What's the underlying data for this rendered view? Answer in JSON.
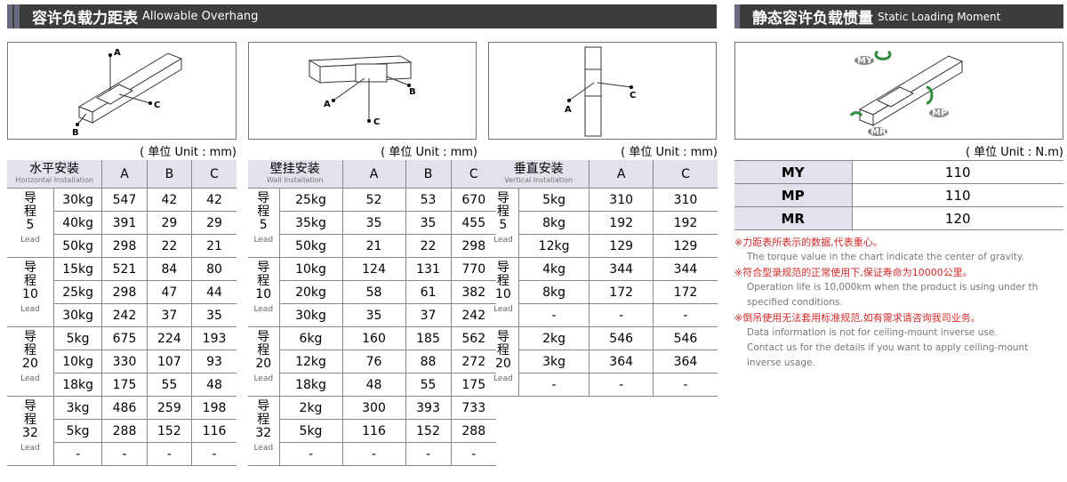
{
  "left_section": {
    "title_cn": "容许负载力距表",
    "title_en": "Allowable Overhang"
  },
  "right_section": {
    "title_cn": "静态容许负载惯量",
    "title_en": "Static Loading Moment"
  },
  "tables": [
    {
      "diagram_labels": [
        "A",
        "B",
        "C"
      ],
      "unit": "( 单位 Unit : mm)",
      "header_cn": "水平安装",
      "header_en": "Horizontal Installation",
      "columns": [
        "A",
        "B",
        "C"
      ],
      "groups": [
        {
          "prefix": "导程",
          "number": "5",
          "suffix": "Lead",
          "rows": [
            [
              "30kg",
              547,
              42,
              42
            ],
            [
              "40kg",
              391,
              29,
              29
            ],
            [
              "50kg",
              298,
              22,
              21
            ]
          ]
        },
        {
          "prefix": "导程",
          "number": "10",
          "suffix": "Lead",
          "rows": [
            [
              "15kg",
              521,
              84,
              80
            ],
            [
              "25kg",
              298,
              47,
              44
            ],
            [
              "30kg",
              242,
              37,
              35
            ]
          ]
        },
        {
          "prefix": "导程",
          "number": "20",
          "suffix": "Lead",
          "rows": [
            [
              "5kg",
              675,
              224,
              193
            ],
            [
              "10kg",
              330,
              107,
              93
            ],
            [
              "18kg",
              175,
              55,
              48
            ]
          ]
        },
        {
          "prefix": "导程",
          "number": "32",
          "suffix": "Lead",
          "rows": [
            [
              "3kg",
              486,
              259,
              198
            ],
            [
              "5kg",
              288,
              152,
              116
            ],
            [
              "-",
              "-",
              "-",
              "-"
            ]
          ]
        }
      ]
    },
    {
      "diagram_labels": [
        "A",
        "B",
        "C"
      ],
      "unit": "( 单位 Unit : mm)",
      "header_cn": "壁挂安装",
      "header_en": "Wall Installation",
      "columns": [
        "A",
        "B",
        "C"
      ],
      "groups": [
        {
          "prefix": "导程",
          "number": "5",
          "suffix": "Lead",
          "rows": [
            [
              "25kg",
              52,
              53,
              670
            ],
            [
              "35kg",
              35,
              35,
              455
            ],
            [
              "50kg",
              21,
              22,
              298
            ]
          ]
        },
        {
          "prefix": "导程",
          "number": "10",
          "suffix": "Lead",
          "rows": [
            [
              "10kg",
              124,
              131,
              770
            ],
            [
              "20kg",
              58,
              61,
              382
            ],
            [
              "30kg",
              35,
              37,
              242
            ]
          ]
        },
        {
          "prefix": "导程",
          "number": "20",
          "suffix": "Lead",
          "rows": [
            [
              "6kg",
              160,
              185,
              562
            ],
            [
              "12kg",
              76,
              88,
              272
            ],
            [
              "18kg",
              48,
              55,
              175
            ]
          ]
        },
        {
          "prefix": "导程",
          "number": "32",
          "suffix": "Lead",
          "rows": [
            [
              "2kg",
              300,
              393,
              733
            ],
            [
              "5kg",
              116,
              152,
              288
            ],
            [
              "-",
              "-",
              "-",
              "-"
            ]
          ]
        }
      ]
    },
    {
      "diagram_labels": [
        "A",
        "C"
      ],
      "unit": "( 单位 Unit : mm)",
      "header_cn": "垂直安装",
      "header_en": "Vertical Installation",
      "columns": [
        "A",
        "C"
      ],
      "groups": [
        {
          "prefix": "导程",
          "number": "5",
          "suffix": "Lead",
          "rows": [
            [
              "5kg",
              310,
              310
            ],
            [
              "8kg",
              192,
              192
            ],
            [
              "12kg",
              129,
              129
            ]
          ]
        },
        {
          "prefix": "导程",
          "number": "10",
          "suffix": "Lead",
          "rows": [
            [
              "4kg",
              344,
              344
            ],
            [
              "8kg",
              172,
              172
            ],
            [
              "-",
              "-",
              "-"
            ]
          ]
        },
        {
          "prefix": "导程",
          "number": "20",
          "suffix": "Lead",
          "rows": [
            [
              "2kg",
              546,
              546
            ],
            [
              "3kg",
              364,
              364
            ],
            [
              "-",
              "-",
              "-"
            ]
          ]
        }
      ]
    }
  ],
  "moment": {
    "diagram_labels": [
      "MY",
      "MP",
      "MR"
    ],
    "unit": "( 单位 Unit : N.m)",
    "rows": [
      [
        "MY",
        110
      ],
      [
        "MP",
        110
      ],
      [
        "MR",
        120
      ]
    ]
  },
  "notes": [
    {
      "cn": "※力距表所表示的数据,代表重心。",
      "en": [
        "The torque value in the chart indicate the center of gravity."
      ]
    },
    {
      "cn": "※符合型录规范的正常使用下,保证寿命为10000公里。",
      "en": [
        "Operation life is 10,000km when the product is using under th",
        "specified conditions."
      ]
    },
    {
      "cn": "※倒吊使用无法套用标准规范,如有需求请咨询我司业务。",
      "en": [
        "Data information is not for ceiling-mount inverse use.",
        "Contact us for the details if you want to apply ceiling-mount",
        "inverse usage."
      ]
    }
  ]
}
